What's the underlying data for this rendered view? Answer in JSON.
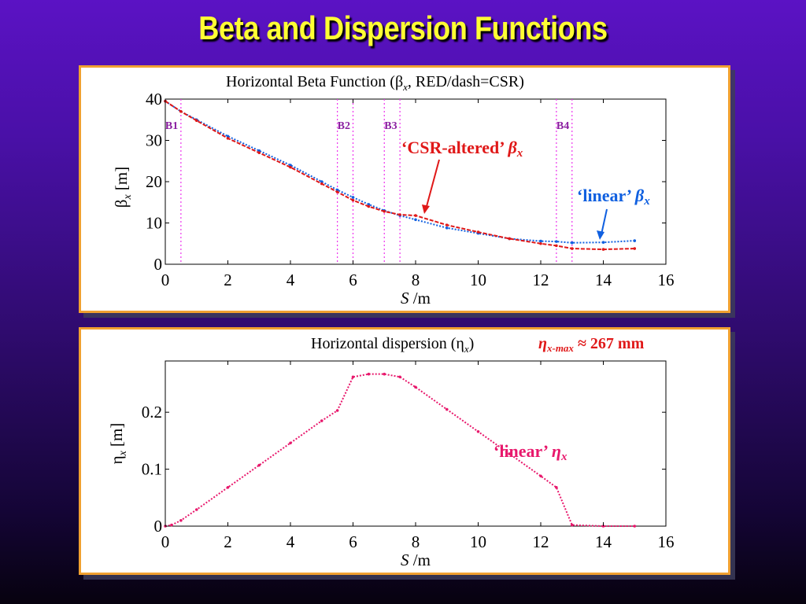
{
  "slide": {
    "title": "Beta and Dispersion Functions"
  },
  "colors": {
    "background": "#4a10a8",
    "title": "#ffff33",
    "panel_border": "#f0a030",
    "csr_red": "#e01818",
    "linear_blue": "#1060e0",
    "dispersion_pink": "#e8186c",
    "bend_marker": "#ee33ee",
    "bend_label": "#8a1ea0"
  },
  "chart_data": [
    {
      "type": "line",
      "title": "Horizontal Beta Function (β",
      "title_sub": "x",
      "title_rest": ", RED/dash=CSR)",
      "xlabel_italic": "S",
      "xlabel_rest": " /m",
      "ylabel": "β",
      "ylabel_sub": "x",
      "ylabel_unit": " [m]",
      "xlim": [
        0,
        16
      ],
      "ylim": [
        0,
        40
      ],
      "xticks": [
        "0",
        "2",
        "4",
        "6",
        "8",
        "10",
        "12",
        "14",
        "16"
      ],
      "yticks": [
        "0",
        "10",
        "20",
        "30",
        "40"
      ],
      "bend_markers": [
        {
          "label": "B1",
          "s": [
            0.5
          ]
        },
        {
          "label": "B2",
          "s": [
            5.5,
            6.0
          ]
        },
        {
          "label": "B3",
          "s": [
            7.0,
            7.5
          ]
        },
        {
          "label": "B4",
          "s": [
            12.5,
            13.0
          ]
        }
      ],
      "series": [
        {
          "color": "#1060e0",
          "style": "dotted",
          "x": [
            0,
            0.5,
            1,
            2,
            3,
            4,
            5,
            5.5,
            6,
            6.5,
            7,
            7.5,
            8,
            9,
            10,
            11,
            12,
            12.5,
            13,
            14,
            15
          ],
          "y": [
            39.5,
            37,
            35,
            31,
            27.5,
            24,
            20,
            18,
            16.2,
            14.5,
            13,
            11.8,
            10.8,
            8.8,
            7.5,
            6.2,
            5.6,
            5.5,
            5.2,
            5.3,
            5.7
          ]
        },
        {
          "color": "#e01818",
          "style": "dashed",
          "x": [
            0,
            0.5,
            1,
            2,
            3,
            4,
            5,
            5.5,
            6,
            6.5,
            7,
            7.5,
            8,
            9,
            10,
            11,
            12,
            12.5,
            13,
            14,
            15
          ],
          "y": [
            39.5,
            37,
            34.8,
            30.5,
            27,
            23.5,
            19.5,
            17.5,
            15.5,
            14,
            12.8,
            12,
            11.8,
            9.5,
            7.8,
            6.2,
            5,
            4.5,
            3.8,
            3.6,
            3.8
          ]
        }
      ],
      "annotations": [
        {
          "text": "‘CSR-altered’ ",
          "math": "β",
          "sub": "x",
          "color": "#e01818"
        },
        {
          "text": "‘linear’ ",
          "math": "β",
          "sub": "x",
          "color": "#1060e0"
        }
      ]
    },
    {
      "type": "line",
      "title": "Horizontal dispersion (η",
      "title_sub": "x",
      "title_rest": ")",
      "note_math": "η",
      "note_sub": "x-max",
      "note_rest": " ≈ 267 mm",
      "xlabel_italic": "S",
      "xlabel_rest": " /m",
      "ylabel": "η",
      "ylabel_sub": "x",
      "ylabel_unit": " [m]",
      "xlim": [
        0,
        16
      ],
      "ylim": [
        0,
        0.29
      ],
      "xticks": [
        "0",
        "2",
        "4",
        "6",
        "8",
        "10",
        "12",
        "14",
        "16"
      ],
      "yticks": [
        "0",
        "0.1",
        "0.2"
      ],
      "series": [
        {
          "color": "#e8186c",
          "style": "dotted",
          "x": [
            0,
            0.2,
            0.5,
            1,
            2,
            3,
            4,
            5,
            5.5,
            6,
            6.5,
            7,
            7.5,
            8,
            9,
            10,
            11,
            12,
            12.5,
            13,
            14,
            15
          ],
          "y": [
            0,
            0.002,
            0.01,
            0.029,
            0.068,
            0.107,
            0.146,
            0.185,
            0.203,
            0.262,
            0.267,
            0.267,
            0.262,
            0.244,
            0.205,
            0.166,
            0.127,
            0.088,
            0.068,
            0.002,
            0,
            0
          ]
        }
      ],
      "annotations": [
        {
          "text": "‘linear’ ",
          "math": "η",
          "sub": "x",
          "color": "#e8186c"
        }
      ]
    }
  ]
}
